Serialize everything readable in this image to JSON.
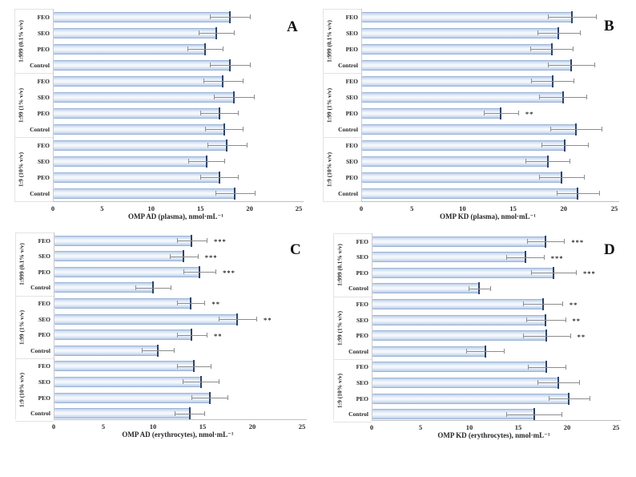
{
  "figure_title": "",
  "colors": {
    "bar_edge": "#8ca7cd",
    "bar_mid": "#c6d7ee",
    "bar_light": "#f4f8fd",
    "bar_end_cap": "#2f4468",
    "error_bar": "#8c8c8c",
    "axis_line": "#bfbfbf",
    "category_axis_line": "#c9c9c9",
    "label_box_line": "#e3e3e3",
    "text": "#262626"
  },
  "chart_data": [
    {
      "id": "A",
      "panel_label": "A",
      "type": "bar",
      "orientation": "horizontal",
      "title": "",
      "xlabel": "OMP AD (plasma), nmol·mL⁻¹",
      "ylabel": "",
      "xlim": [
        0,
        25
      ],
      "xticks": [
        0,
        5,
        10,
        15,
        20,
        25
      ],
      "grid": false,
      "legend": null,
      "groups": [
        {
          "label": "1:999 (0.1% v/v)",
          "bars": [
            {
              "name": "FEO",
              "value": 18.0,
              "error": 2.0,
              "sig": ""
            },
            {
              "name": "SEO",
              "value": 16.6,
              "error": 1.8,
              "sig": ""
            },
            {
              "name": "PEO",
              "value": 15.5,
              "error": 1.8,
              "sig": ""
            },
            {
              "name": "Control",
              "value": 18.0,
              "error": 2.0,
              "sig": ""
            }
          ]
        },
        {
          "label": "1:99 (1% v/v)",
          "bars": [
            {
              "name": "FEO",
              "value": 17.3,
              "error": 2.0,
              "sig": ""
            },
            {
              "name": "SEO",
              "value": 18.4,
              "error": 2.0,
              "sig": ""
            },
            {
              "name": "PEO",
              "value": 16.9,
              "error": 1.9,
              "sig": ""
            },
            {
              "name": "Control",
              "value": 17.4,
              "error": 1.9,
              "sig": ""
            }
          ]
        },
        {
          "label": "1:9 (10% v/v)",
          "bars": [
            {
              "name": "FEO",
              "value": 17.7,
              "error": 2.0,
              "sig": ""
            },
            {
              "name": "SEO",
              "value": 15.6,
              "error": 1.8,
              "sig": ""
            },
            {
              "name": "PEO",
              "value": 16.9,
              "error": 1.9,
              "sig": ""
            },
            {
              "name": "Control",
              "value": 18.5,
              "error": 2.0,
              "sig": ""
            }
          ]
        }
      ]
    },
    {
      "id": "B",
      "panel_label": "B",
      "type": "bar",
      "orientation": "horizontal",
      "title": "",
      "xlabel": "OMP KD (plasma), nmol·mL⁻¹",
      "ylabel": "",
      "xlim": [
        0,
        25
      ],
      "xticks": [
        0,
        5,
        10,
        15,
        20,
        25
      ],
      "grid": false,
      "legend": null,
      "groups": [
        {
          "label": "1:999 (0.1% v/v)",
          "bars": [
            {
              "name": "FEO",
              "value": 20.8,
              "error": 2.4,
              "sig": ""
            },
            {
              "name": "SEO",
              "value": 19.5,
              "error": 2.1,
              "sig": ""
            },
            {
              "name": "PEO",
              "value": 18.8,
              "error": 2.1,
              "sig": ""
            },
            {
              "name": "Control",
              "value": 20.7,
              "error": 2.3,
              "sig": ""
            }
          ]
        },
        {
          "label": "1:99 (1% v/v)",
          "bars": [
            {
              "name": "FEO",
              "value": 18.9,
              "error": 2.1,
              "sig": ""
            },
            {
              "name": "SEO",
              "value": 19.9,
              "error": 2.3,
              "sig": ""
            },
            {
              "name": "PEO",
              "value": 13.8,
              "error": 1.7,
              "sig": "**"
            },
            {
              "name": "Control",
              "value": 21.2,
              "error": 2.5,
              "sig": ""
            }
          ]
        },
        {
          "label": "1:9 (10% v/v)",
          "bars": [
            {
              "name": "FEO",
              "value": 20.1,
              "error": 2.3,
              "sig": ""
            },
            {
              "name": "SEO",
              "value": 18.4,
              "error": 2.2,
              "sig": ""
            },
            {
              "name": "PEO",
              "value": 19.8,
              "error": 2.2,
              "sig": ""
            },
            {
              "name": "Control",
              "value": 21.4,
              "error": 2.1,
              "sig": ""
            }
          ]
        }
      ]
    },
    {
      "id": "C",
      "panel_label": "C",
      "type": "bar",
      "orientation": "horizontal",
      "title": "",
      "xlabel": "OMP AD (erythrocytes), nmol·mL⁻¹",
      "ylabel": "",
      "xlim": [
        0,
        25
      ],
      "xticks": [
        0,
        5,
        10,
        15,
        20,
        25
      ],
      "grid": false,
      "legend": null,
      "groups": [
        {
          "label": "1:999 (0.1% v/v)",
          "bars": [
            {
              "name": "FEO",
              "value": 13.9,
              "error": 1.5,
              "sig": "***"
            },
            {
              "name": "SEO",
              "value": 13.1,
              "error": 1.4,
              "sig": "***"
            },
            {
              "name": "PEO",
              "value": 14.7,
              "error": 1.6,
              "sig": "***"
            },
            {
              "name": "Control",
              "value": 10.0,
              "error": 1.8,
              "sig": ""
            }
          ]
        },
        {
          "label": "1:99 (1% v/v)",
          "bars": [
            {
              "name": "FEO",
              "value": 13.8,
              "error": 1.4,
              "sig": "**"
            },
            {
              "name": "SEO",
              "value": 18.5,
              "error": 1.9,
              "sig": "**"
            },
            {
              "name": "PEO",
              "value": 13.9,
              "error": 1.5,
              "sig": "**"
            },
            {
              "name": "Control",
              "value": 10.5,
              "error": 1.6,
              "sig": ""
            }
          ]
        },
        {
          "label": "1:9 (10% v/v)",
          "bars": [
            {
              "name": "FEO",
              "value": 14.1,
              "error": 1.7,
              "sig": ""
            },
            {
              "name": "SEO",
              "value": 14.8,
              "error": 1.8,
              "sig": ""
            },
            {
              "name": "PEO",
              "value": 15.7,
              "error": 1.8,
              "sig": ""
            },
            {
              "name": "Control",
              "value": 13.7,
              "error": 1.5,
              "sig": ""
            }
          ]
        }
      ]
    },
    {
      "id": "D",
      "panel_label": "D",
      "type": "bar",
      "orientation": "horizontal",
      "title": "",
      "xlabel": "OMP KD (erythrocytes), nmol·mL⁻¹",
      "ylabel": "",
      "xlim": [
        0,
        25
      ],
      "xticks": [
        0,
        5,
        10,
        15,
        20,
        25
      ],
      "grid": false,
      "legend": null,
      "groups": [
        {
          "label": "1:999 (0.1% v/v)",
          "bars": [
            {
              "name": "FEO",
              "value": 17.8,
              "error": 1.9,
              "sig": "***"
            },
            {
              "name": "SEO",
              "value": 15.7,
              "error": 1.9,
              "sig": "***"
            },
            {
              "name": "PEO",
              "value": 18.6,
              "error": 2.3,
              "sig": "***"
            },
            {
              "name": "Control",
              "value": 11.0,
              "error": 1.1,
              "sig": ""
            }
          ]
        },
        {
          "label": "1:99 (1% v/v)",
          "bars": [
            {
              "name": "FEO",
              "value": 17.5,
              "error": 2.0,
              "sig": "**"
            },
            {
              "name": "SEO",
              "value": 17.8,
              "error": 2.0,
              "sig": "**"
            },
            {
              "name": "PEO",
              "value": 17.9,
              "error": 2.4,
              "sig": "**"
            },
            {
              "name": "Control",
              "value": 11.6,
              "error": 1.9,
              "sig": ""
            }
          ]
        },
        {
          "label": "1:9 (10% v/v)",
          "bars": [
            {
              "name": "FEO",
              "value": 17.9,
              "error": 1.9,
              "sig": ""
            },
            {
              "name": "SEO",
              "value": 19.1,
              "error": 2.1,
              "sig": ""
            },
            {
              "name": "PEO",
              "value": 20.2,
              "error": 2.1,
              "sig": ""
            },
            {
              "name": "Control",
              "value": 16.6,
              "error": 2.8,
              "sig": ""
            }
          ]
        }
      ]
    }
  ]
}
